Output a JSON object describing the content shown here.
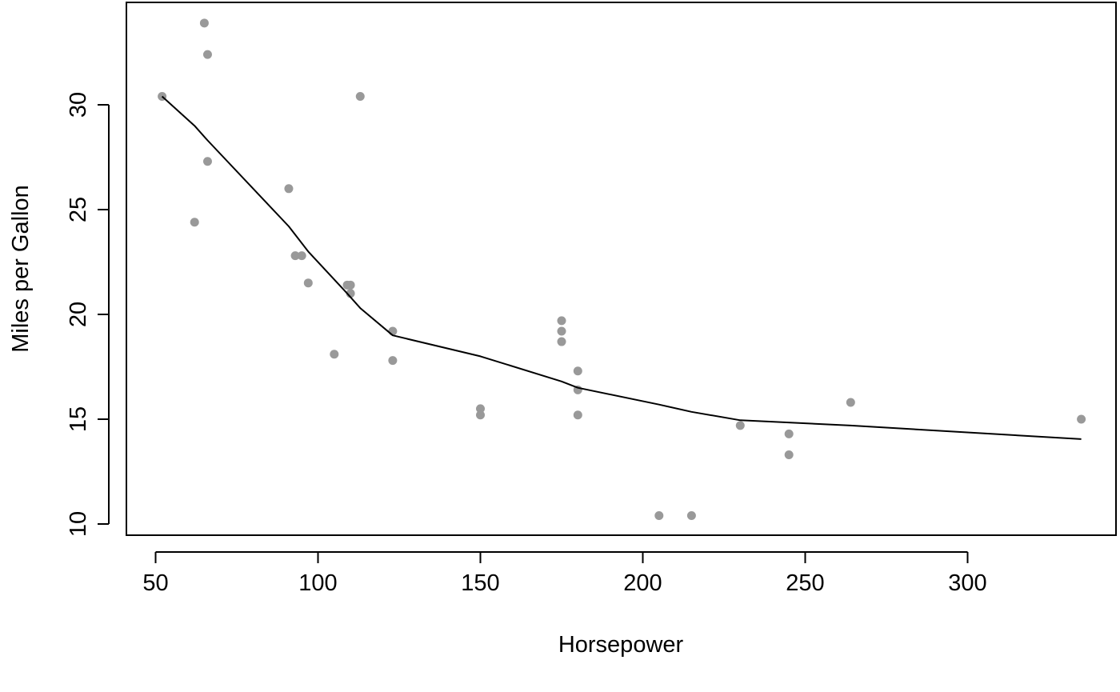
{
  "chart_data": {
    "type": "scatter",
    "title": "",
    "xlabel": "Horsepower",
    "ylabel": "Miles per Gallon",
    "xlim": [
      40,
      345
    ],
    "ylim": [
      9.5,
      34.9
    ],
    "xticks": [
      50,
      100,
      150,
      200,
      250,
      300
    ],
    "yticks": [
      10,
      15,
      20,
      25,
      30
    ],
    "xtick_labels": [
      "50",
      "100",
      "150",
      "200",
      "250",
      "300"
    ],
    "ytick_labels": [
      "10",
      "15",
      "20",
      "25",
      "30"
    ],
    "grid": false,
    "point_color": "#999999",
    "line_color": "#000000",
    "series": [
      {
        "type": "scatter",
        "points": [
          {
            "x": 52,
            "y": 30.4
          },
          {
            "x": 62,
            "y": 24.4
          },
          {
            "x": 65,
            "y": 33.9
          },
          {
            "x": 66,
            "y": 32.4
          },
          {
            "x": 66,
            "y": 27.3
          },
          {
            "x": 91,
            "y": 26.0
          },
          {
            "x": 93,
            "y": 22.8
          },
          {
            "x": 95,
            "y": 22.8
          },
          {
            "x": 97,
            "y": 21.5
          },
          {
            "x": 105,
            "y": 18.1
          },
          {
            "x": 109,
            "y": 21.4
          },
          {
            "x": 110,
            "y": 21.4
          },
          {
            "x": 110,
            "y": 21.0
          },
          {
            "x": 113,
            "y": 30.4
          },
          {
            "x": 123,
            "y": 19.2
          },
          {
            "x": 123,
            "y": 17.8
          },
          {
            "x": 150,
            "y": 15.5
          },
          {
            "x": 150,
            "y": 15.2
          },
          {
            "x": 175,
            "y": 19.7
          },
          {
            "x": 175,
            "y": 19.2
          },
          {
            "x": 175,
            "y": 18.7
          },
          {
            "x": 180,
            "y": 17.3
          },
          {
            "x": 180,
            "y": 16.4
          },
          {
            "x": 180,
            "y": 15.2
          },
          {
            "x": 205,
            "y": 10.4
          },
          {
            "x": 215,
            "y": 10.4
          },
          {
            "x": 230,
            "y": 14.7
          },
          {
            "x": 245,
            "y": 14.3
          },
          {
            "x": 245,
            "y": 13.3
          },
          {
            "x": 264,
            "y": 15.8
          },
          {
            "x": 335,
            "y": 15.0
          }
        ]
      },
      {
        "type": "line",
        "points": [
          {
            "x": 52,
            "y": 30.4
          },
          {
            "x": 62,
            "y": 29.0
          },
          {
            "x": 66,
            "y": 28.3
          },
          {
            "x": 91,
            "y": 24.2
          },
          {
            "x": 97,
            "y": 23.0
          },
          {
            "x": 109,
            "y": 21.0
          },
          {
            "x": 113,
            "y": 20.3
          },
          {
            "x": 123,
            "y": 19.0
          },
          {
            "x": 150,
            "y": 18.0
          },
          {
            "x": 175,
            "y": 16.8
          },
          {
            "x": 180,
            "y": 16.5
          },
          {
            "x": 205,
            "y": 15.7
          },
          {
            "x": 215,
            "y": 15.35
          },
          {
            "x": 230,
            "y": 14.95
          },
          {
            "x": 264,
            "y": 14.7
          },
          {
            "x": 335,
            "y": 14.05
          }
        ]
      }
    ]
  }
}
